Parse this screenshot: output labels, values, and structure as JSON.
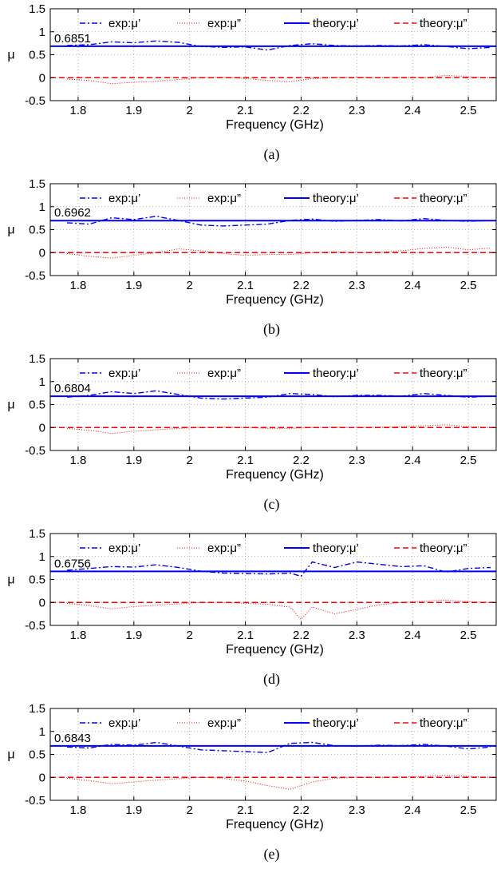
{
  "legend": {
    "exp_re": "exp:μ’",
    "exp_im": "exp:μ”",
    "theory_re": "theory:μ’",
    "theory_im": "theory:μ”"
  },
  "colors": {
    "blue": "#0000ff",
    "red": "#ff0000"
  },
  "chart_data": [
    {
      "type": "line",
      "caption": "(a)",
      "xlabel": "Frequency (GHz)",
      "ylabel": "μ",
      "xlim": [
        1.75,
        2.55
      ],
      "ylim": [
        -0.5,
        1.5
      ],
      "xticks": [
        "1.8",
        "1.9",
        "2",
        "2.1",
        "2.2",
        "2.3",
        "2.4",
        "2.5"
      ],
      "yticks": [
        "-0.5",
        "0",
        "0.5",
        "1",
        "1.5"
      ],
      "grid": true,
      "legend_position": "top",
      "annotation": "0.6851",
      "theory_re": 0.6851,
      "theory_im": 0,
      "x": [
        1.78,
        1.82,
        1.86,
        1.9,
        1.94,
        1.98,
        2.02,
        2.06,
        2.1,
        2.14,
        2.18,
        2.22,
        2.26,
        2.3,
        2.34,
        2.38,
        2.42,
        2.46,
        2.5,
        2.54
      ],
      "exp_re": [
        0.7,
        0.72,
        0.78,
        0.76,
        0.8,
        0.77,
        0.68,
        0.66,
        0.67,
        0.6,
        0.7,
        0.74,
        0.7,
        0.69,
        0.7,
        0.69,
        0.72,
        0.68,
        0.63,
        0.66
      ],
      "exp_im": [
        -0.03,
        -0.06,
        -0.13,
        -0.1,
        -0.08,
        -0.04,
        0.0,
        0.01,
        -0.02,
        -0.06,
        -0.09,
        -0.02,
        0.0,
        0.01,
        0.0,
        0.01,
        0.0,
        0.05,
        0.02,
        0.0
      ]
    },
    {
      "type": "line",
      "caption": "(b)",
      "xlabel": "Frequency (GHz)",
      "ylabel": "μ",
      "xlim": [
        1.75,
        2.55
      ],
      "ylim": [
        -0.5,
        1.5
      ],
      "xticks": [
        "1.8",
        "1.9",
        "2",
        "2.1",
        "2.2",
        "2.3",
        "2.4",
        "2.5"
      ],
      "yticks": [
        "-0.5",
        "0",
        "0.5",
        "1",
        "1.5"
      ],
      "grid": true,
      "legend_position": "top",
      "annotation": "0.6962",
      "theory_re": 0.6962,
      "theory_im": 0,
      "x": [
        1.78,
        1.82,
        1.86,
        1.9,
        1.94,
        1.98,
        2.02,
        2.06,
        2.1,
        2.14,
        2.18,
        2.22,
        2.26,
        2.3,
        2.34,
        2.38,
        2.42,
        2.46,
        2.5,
        2.54
      ],
      "exp_re": [
        0.65,
        0.62,
        0.76,
        0.72,
        0.79,
        0.7,
        0.6,
        0.58,
        0.6,
        0.62,
        0.7,
        0.73,
        0.68,
        0.7,
        0.72,
        0.69,
        0.74,
        0.7,
        0.68,
        0.7
      ],
      "exp_im": [
        -0.02,
        -0.08,
        -0.12,
        -0.06,
        0.0,
        0.08,
        0.04,
        -0.02,
        -0.06,
        -0.04,
        -0.04,
        0.0,
        0.02,
        0.0,
        0.01,
        0.04,
        0.09,
        0.12,
        0.06,
        0.1
      ]
    },
    {
      "type": "line",
      "caption": "(c)",
      "xlabel": "Frequency (GHz)",
      "ylabel": "μ",
      "xlim": [
        1.75,
        2.55
      ],
      "ylim": [
        -0.5,
        1.5
      ],
      "xticks": [
        "1.8",
        "1.9",
        "2",
        "2.1",
        "2.2",
        "2.3",
        "2.4",
        "2.5"
      ],
      "yticks": [
        "-0.5",
        "0",
        "0.5",
        "1",
        "1.5"
      ],
      "grid": true,
      "legend_position": "top",
      "annotation": "0.6804",
      "theory_re": 0.6804,
      "theory_im": 0,
      "x": [
        1.78,
        1.82,
        1.86,
        1.9,
        1.94,
        1.98,
        2.02,
        2.06,
        2.1,
        2.14,
        2.18,
        2.22,
        2.26,
        2.3,
        2.34,
        2.38,
        2.42,
        2.46,
        2.5,
        2.54
      ],
      "exp_re": [
        0.66,
        0.7,
        0.78,
        0.74,
        0.8,
        0.72,
        0.64,
        0.62,
        0.64,
        0.66,
        0.74,
        0.72,
        0.67,
        0.7,
        0.7,
        0.68,
        0.74,
        0.7,
        0.66,
        0.68
      ],
      "exp_im": [
        -0.02,
        -0.06,
        -0.13,
        -0.08,
        -0.05,
        -0.02,
        0.0,
        0.01,
        0.0,
        -0.02,
        -0.02,
        0.0,
        0.01,
        0.0,
        0.01,
        0.02,
        0.04,
        0.06,
        0.02,
        0.0
      ]
    },
    {
      "type": "line",
      "caption": "(d)",
      "xlabel": "Frequency (GHz)",
      "ylabel": "μ",
      "xlim": [
        1.75,
        2.55
      ],
      "ylim": [
        -0.5,
        1.5
      ],
      "xticks": [
        "1.8",
        "1.9",
        "2",
        "2.1",
        "2.2",
        "2.3",
        "2.4",
        "2.5"
      ],
      "yticks": [
        "-0.5",
        "0",
        "0.5",
        "1",
        "1.5"
      ],
      "grid": true,
      "legend_position": "top",
      "annotation": "0.6756",
      "theory_re": 0.6756,
      "theory_im": 0,
      "x": [
        1.78,
        1.82,
        1.86,
        1.9,
        1.94,
        1.98,
        2.02,
        2.06,
        2.1,
        2.14,
        2.18,
        2.2,
        2.22,
        2.26,
        2.3,
        2.34,
        2.38,
        2.42,
        2.46,
        2.5,
        2.54
      ],
      "exp_re": [
        0.7,
        0.74,
        0.78,
        0.77,
        0.82,
        0.76,
        0.68,
        0.64,
        0.63,
        0.62,
        0.64,
        0.57,
        0.88,
        0.76,
        0.88,
        0.83,
        0.78,
        0.8,
        0.66,
        0.74,
        0.76
      ],
      "exp_im": [
        -0.02,
        -0.07,
        -0.14,
        -0.09,
        -0.06,
        -0.03,
        0.0,
        0.0,
        -0.02,
        -0.04,
        -0.1,
        -0.37,
        -0.1,
        -0.25,
        -0.15,
        -0.05,
        0.0,
        0.03,
        0.05,
        0.02,
        0.0
      ]
    },
    {
      "type": "line",
      "caption": "(e)",
      "xlabel": "Frequency (GHz)",
      "ylabel": "μ",
      "xlim": [
        1.75,
        2.55
      ],
      "ylim": [
        -0.5,
        1.5
      ],
      "xticks": [
        "1.8",
        "1.9",
        "2",
        "2.1",
        "2.2",
        "2.3",
        "2.4",
        "2.5"
      ],
      "yticks": [
        "-0.5",
        "0",
        "0.5",
        "1",
        "1.5"
      ],
      "grid": true,
      "legend_position": "top",
      "annotation": "0.6843",
      "theory_re": 0.6843,
      "theory_im": 0,
      "x": [
        1.78,
        1.82,
        1.86,
        1.9,
        1.94,
        1.98,
        2.02,
        2.06,
        2.1,
        2.14,
        2.18,
        2.22,
        2.26,
        2.3,
        2.34,
        2.38,
        2.42,
        2.46,
        2.5,
        2.54
      ],
      "exp_re": [
        0.66,
        0.64,
        0.72,
        0.7,
        0.76,
        0.68,
        0.6,
        0.58,
        0.56,
        0.54,
        0.74,
        0.76,
        0.69,
        0.68,
        0.7,
        0.69,
        0.72,
        0.68,
        0.62,
        0.66
      ],
      "exp_im": [
        -0.02,
        -0.07,
        -0.14,
        -0.1,
        -0.06,
        -0.03,
        0.0,
        -0.02,
        -0.08,
        -0.18,
        -0.26,
        -0.1,
        -0.02,
        0.0,
        0.0,
        0.01,
        0.02,
        0.05,
        0.02,
        0.0
      ]
    }
  ]
}
